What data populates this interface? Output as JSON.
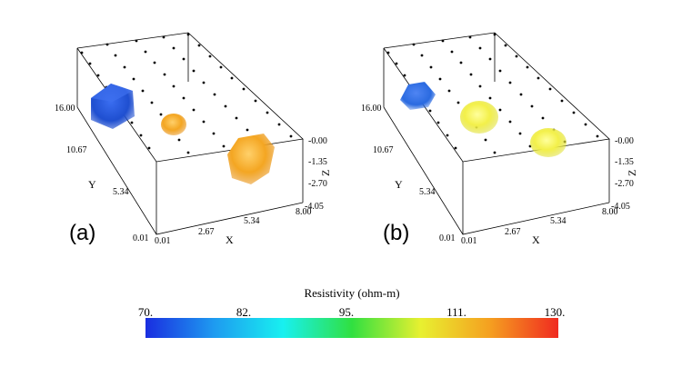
{
  "panels": [
    {
      "label": "(a)",
      "y_ticks": [
        "16.00",
        "10.67",
        "5.34",
        "0.01"
      ],
      "x_ticks": [
        "0.01",
        "2.67",
        "5.34",
        "8.00"
      ],
      "z_ticks": [
        "-0.00",
        "-1.35",
        "-2.70",
        "-4.05"
      ],
      "x_axis_label": "X",
      "y_axis_label": "Y",
      "z_axis_label": "Z",
      "anomalies": [
        {
          "color": "#1f4fd0",
          "resistivity_class": "low"
        },
        {
          "color": "#f0a020",
          "resistivity_class": "high"
        },
        {
          "color": "#f0a020",
          "resistivity_class": "high"
        }
      ]
    },
    {
      "label": "(b)",
      "y_ticks": [
        "16.00",
        "10.67",
        "5.34",
        "0.01"
      ],
      "x_ticks": [
        "0.01",
        "2.67",
        "5.34",
        "8.00"
      ],
      "z_ticks": [
        "-0.00",
        "-1.35",
        "-2.70",
        "-4.05"
      ],
      "x_axis_label": "X",
      "y_axis_label": "Y",
      "z_axis_label": "Z",
      "anomalies": [
        {
          "color": "#2a6ae0",
          "resistivity_class": "low"
        },
        {
          "color": "#ecec3a",
          "resistivity_class": "high"
        },
        {
          "color": "#ecec3a",
          "resistivity_class": "high"
        }
      ]
    }
  ],
  "colorbar": {
    "title": "Resistivity (ohm-m)",
    "ticks": [
      "70.",
      "82.",
      "95.",
      "111.",
      "130."
    ],
    "colors": [
      "#1a2ee0",
      "#1e9bf0",
      "#18f0f0",
      "#30e040",
      "#e8f030",
      "#f5a020",
      "#f02a20"
    ]
  }
}
